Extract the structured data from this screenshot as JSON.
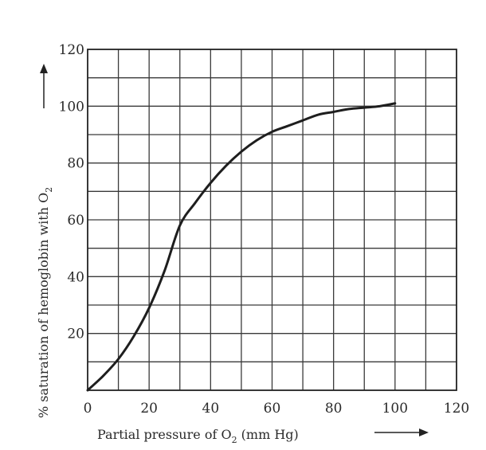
{
  "chart_data": {
    "type": "line",
    "title": "",
    "xlabel_parts": {
      "before": "Partial pressure of O",
      "sub": "2",
      "after": " (mm Hg)"
    },
    "ylabel_parts": {
      "before": "% saturation of hemoglobin with O",
      "sub": "2"
    },
    "xlim": [
      0,
      120
    ],
    "ylim": [
      0,
      120
    ],
    "x_ticks": [
      0,
      20,
      40,
      60,
      80,
      100,
      120
    ],
    "y_ticks": [
      20,
      40,
      60,
      80,
      100,
      120
    ],
    "x_tick_labels": [
      "0",
      "20",
      "40",
      "60",
      "80",
      "100",
      "120"
    ],
    "y_tick_labels": [
      "20",
      "40",
      "60",
      "80",
      "100",
      "120"
    ],
    "grid": true,
    "grid_step_x": 10,
    "grid_step_y": 10,
    "legend": "none",
    "series": [
      {
        "x": [
          0,
          5,
          10,
          15,
          20,
          25,
          30,
          35,
          40,
          45,
          50,
          55,
          60,
          65,
          70,
          75,
          80,
          85,
          90,
          95,
          100
        ],
        "y": [
          0,
          5,
          11,
          19,
          29,
          42,
          58,
          66,
          73,
          79,
          84,
          88,
          91,
          93,
          95,
          97,
          98,
          99,
          99.5,
          100,
          101
        ]
      }
    ]
  }
}
